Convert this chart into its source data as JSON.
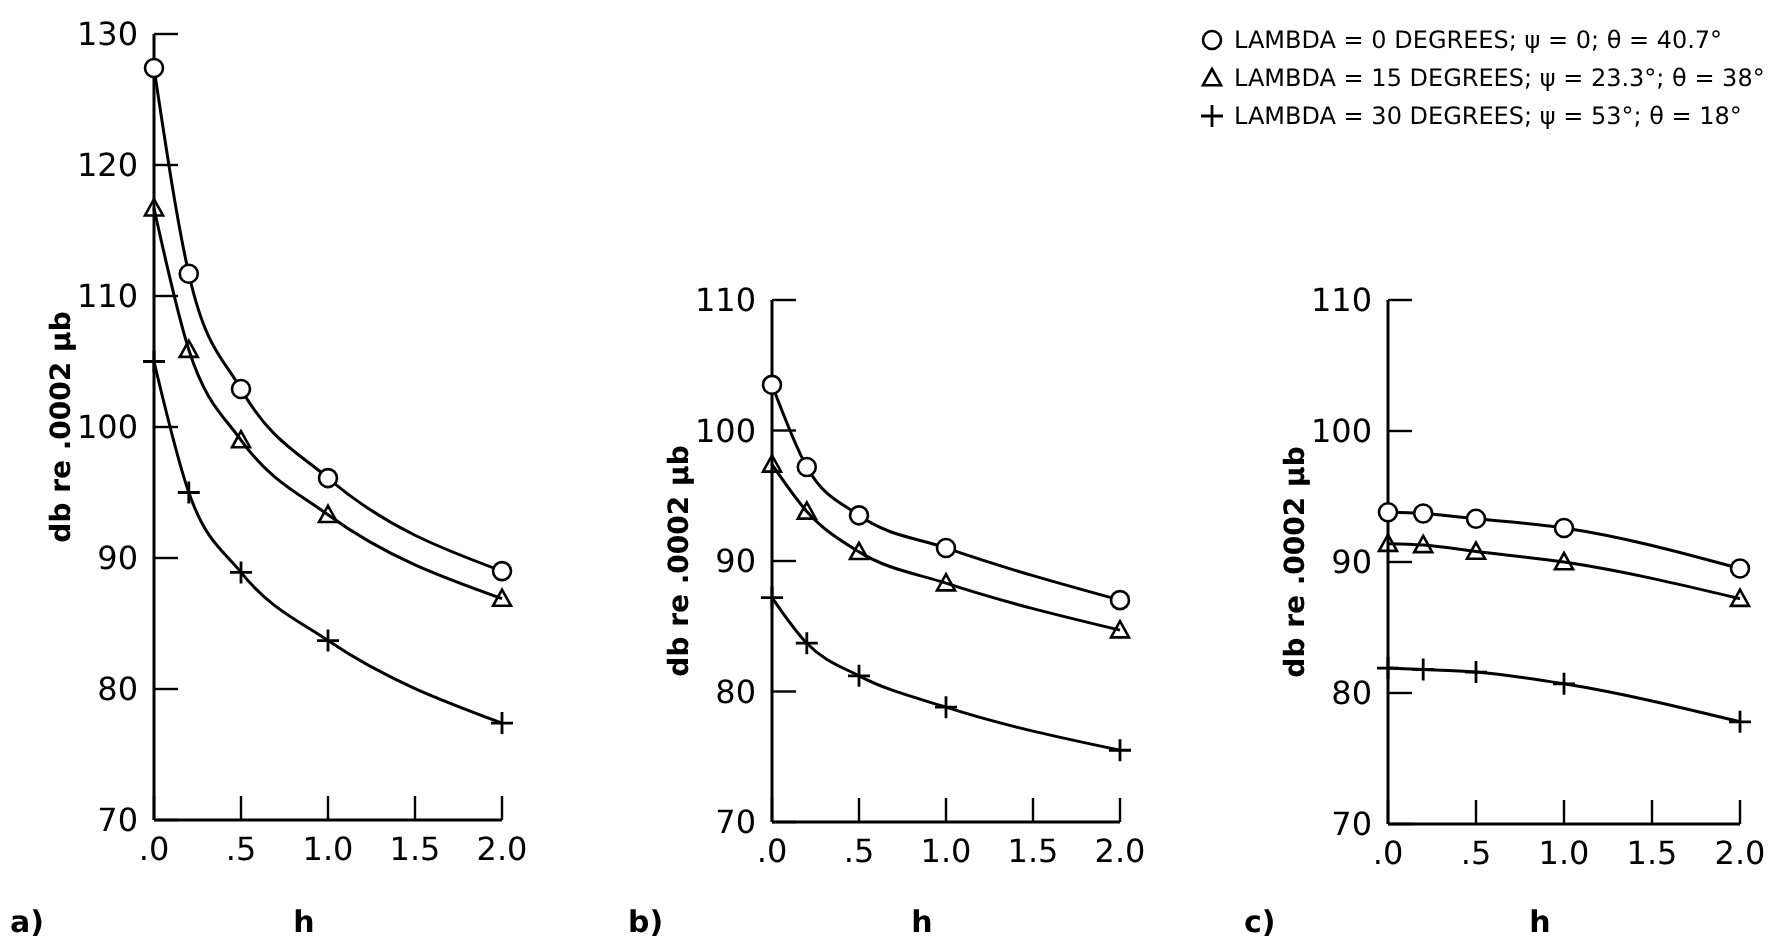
{
  "chart_data": [
    {
      "type": "line",
      "xlabel": "h",
      "ylabel": "db re .0002 μb",
      "annotations": [
        "a)"
      ],
      "x": [
        0,
        0.2,
        0.5,
        1.0,
        2.0
      ],
      "xlim": [
        0,
        2
      ],
      "xticks": [
        {
          "value": 0,
          "label": ".0"
        },
        {
          "value": 0.5,
          "label": ".5"
        },
        {
          "value": 1,
          "label": "1.0"
        },
        {
          "value": 1.5,
          "label": "1.5"
        },
        {
          "value": 2,
          "label": "2.0"
        }
      ],
      "ylim": [
        70,
        130
      ],
      "yticks": [
        70,
        80,
        90,
        100,
        110,
        120,
        130
      ],
      "grid": false,
      "legend": false,
      "line_style": "solid",
      "series": [
        {
          "color": "#000000",
          "marker": "circle",
          "values": [
            127.4,
            111.7,
            102.9,
            96.1,
            89.0
          ]
        },
        {
          "color": "#000000",
          "marker": "triangle",
          "values": [
            116.7,
            105.9,
            99.0,
            93.3,
            86.9
          ]
        },
        {
          "color": "#000000",
          "marker": "cross",
          "values": [
            105.0,
            95.0,
            88.9,
            83.7,
            77.4
          ]
        }
      ]
    },
    {
      "type": "line",
      "xlabel": "h",
      "ylabel": "db re .0002 μb",
      "annotations": [
        "b)"
      ],
      "x": [
        0,
        0.2,
        0.5,
        1.0,
        2.0
      ],
      "xlim": [
        0,
        2
      ],
      "xticks": [
        {
          "value": 0,
          "label": ".0"
        },
        {
          "value": 0.5,
          "label": ".5"
        },
        {
          "value": 1,
          "label": "1.0"
        },
        {
          "value": 1.5,
          "label": "1.5"
        },
        {
          "value": 2,
          "label": "2.0"
        }
      ],
      "ylim": [
        70,
        110
      ],
      "yticks": [
        70,
        80,
        90,
        100,
        110
      ],
      "grid": false,
      "legend": false,
      "line_style": "solid",
      "series": [
        {
          "color": "#000000",
          "marker": "circle",
          "values": [
            103.5,
            97.2,
            93.5,
            91.0,
            87.0
          ]
        },
        {
          "color": "#000000",
          "marker": "triangle",
          "values": [
            97.4,
            93.8,
            90.7,
            88.3,
            84.7
          ]
        },
        {
          "color": "#000000",
          "marker": "cross",
          "values": [
            87.2,
            83.7,
            81.2,
            78.8,
            75.5
          ]
        }
      ]
    },
    {
      "type": "line",
      "xlabel": "h",
      "ylabel": "db re .0002 μb",
      "annotations": [
        "c)"
      ],
      "x": [
        0,
        0.2,
        0.5,
        1.0,
        2.0
      ],
      "xlim": [
        0,
        2
      ],
      "xticks": [
        {
          "value": 0,
          "label": ".0"
        },
        {
          "value": 0.5,
          "label": ".5"
        },
        {
          "value": 1,
          "label": "1.0"
        },
        {
          "value": 1.5,
          "label": "1.5"
        },
        {
          "value": 2,
          "label": "2.0"
        }
      ],
      "ylim": [
        70,
        110
      ],
      "yticks": [
        70,
        80,
        90,
        100,
        110
      ],
      "grid": false,
      "legend": "top",
      "line_style": "solid",
      "series": [
        {
          "name": "LAMBDA = 0 DEGREES; ψ = 0; θ = 40.7°",
          "color": "#000000",
          "marker": "circle",
          "values": [
            93.8,
            93.7,
            93.3,
            92.6,
            89.5
          ]
        },
        {
          "name": "LAMBDA = 15 DEGREES; ψ = 23.3°; θ = 38°",
          "color": "#000000",
          "marker": "triangle",
          "values": [
            91.4,
            91.3,
            90.8,
            90.0,
            87.2
          ]
        },
        {
          "name": "LAMBDA = 30 DEGREES; ψ = 53°; θ = 18°",
          "color": "#000000",
          "marker": "cross",
          "values": [
            81.9,
            81.8,
            81.6,
            80.7,
            77.8
          ]
        }
      ]
    }
  ]
}
